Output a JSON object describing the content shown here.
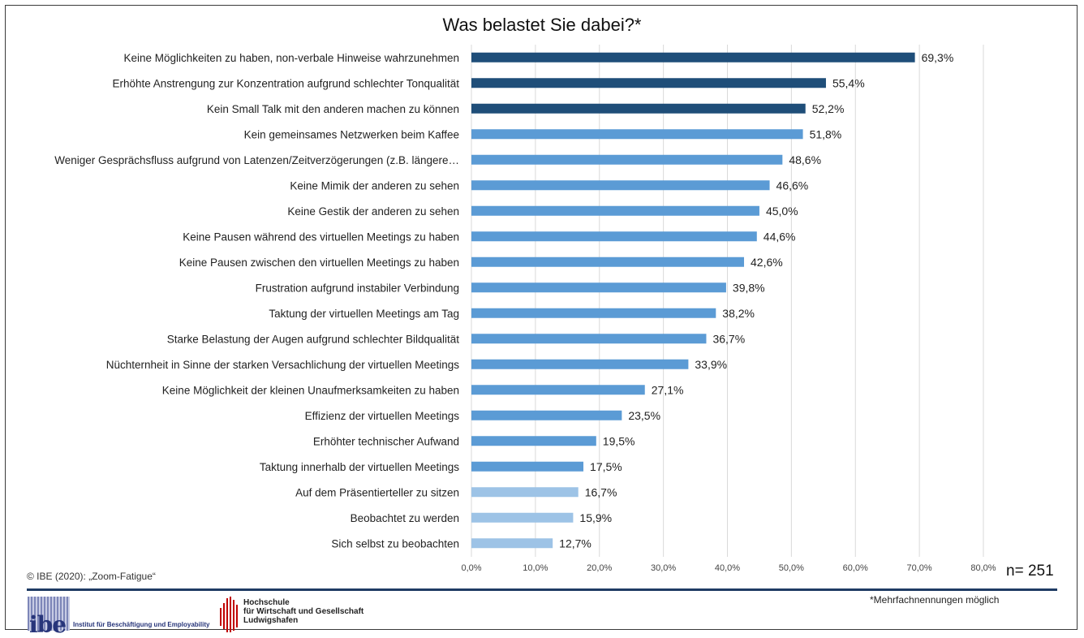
{
  "chart_data": {
    "type": "bar",
    "orientation": "horizontal",
    "title": "Was belastet Sie dabei?*",
    "categories": [
      "Keine Möglichkeiten zu haben, non-verbale Hinweise wahrzunehmen",
      "Erhöhte Anstrengung zur Konzentration aufgrund schlechter Tonqualität",
      "Kein Small Talk mit den anderen machen zu können",
      "Kein gemeinsames Netzwerken beim Kaffee",
      "Weniger Gesprächsfluss aufgrund von Latenzen/Zeitverzögerungen (z.B. längere…",
      "Keine Mimik der anderen zu sehen",
      "Keine Gestik der anderen zu sehen",
      "Keine Pausen während des virtuellen Meetings zu haben",
      "Keine Pausen zwischen den virtuellen Meetings zu haben",
      "Frustration aufgrund instabiler Verbindung",
      "Taktung der virtuellen Meetings am Tag",
      "Starke Belastung der Augen aufgrund schlechter Bildqualität",
      "Nüchternheit in Sinne der starken Versachlichung der virtuellen Meetings",
      "Keine Möglichkeit der kleinen Unaufmerksamkeiten zu haben",
      "Effizienz der virtuellen Meetings",
      "Erhöhter technischer Aufwand",
      "Taktung innerhalb der virtuellen Meetings",
      "Auf dem Präsentierteller zu sitzen",
      "Beobachtet zu werden",
      "Sich selbst zu beobachten"
    ],
    "values": [
      69.3,
      55.4,
      52.2,
      51.8,
      48.6,
      46.6,
      45.0,
      44.6,
      42.6,
      39.8,
      38.2,
      36.7,
      33.9,
      27.1,
      23.5,
      19.5,
      17.5,
      16.7,
      15.9,
      12.7
    ],
    "value_labels": [
      "69,3%",
      "55,4%",
      "52,2%",
      "51,8%",
      "48,6%",
      "46,6%",
      "45,0%",
      "44,6%",
      "42,6%",
      "39,8%",
      "38,2%",
      "36,7%",
      "33,9%",
      "27,1%",
      "23,5%",
      "19,5%",
      "17,5%",
      "16,7%",
      "15,9%",
      "12,7%"
    ],
    "bar_tiers": [
      "dark",
      "dark",
      "dark",
      "mid",
      "mid",
      "mid",
      "mid",
      "mid",
      "mid",
      "mid",
      "mid",
      "mid",
      "mid",
      "mid",
      "mid",
      "mid",
      "mid",
      "light",
      "light",
      "light"
    ],
    "colors": {
      "dark": "#1f4e79",
      "mid": "#5b9bd5",
      "light": "#9dc3e6",
      "grid": "#d9d9d9"
    },
    "x_ticks": [
      0,
      10,
      20,
      30,
      40,
      50,
      60,
      70,
      80
    ],
    "x_tick_labels": [
      "0,0%",
      "10,0%",
      "20,0%",
      "30,0%",
      "40,0%",
      "50,0%",
      "60,0%",
      "70,0%",
      "80,0%"
    ],
    "xlim": [
      0,
      80
    ],
    "grid": true
  },
  "footer": {
    "copyright": "© IBE (2020): „Zoom-Fatigue“",
    "n_label": "n= 251",
    "note": "*Mehrfachnennungen möglich"
  },
  "logos": {
    "ibe_mark": "ibe",
    "ibe_subtitle": "Institut für Beschäftigung und Employability",
    "hs_lines": [
      "Hochschule",
      "für Wirtschaft und Gesellschaft",
      "Ludwigshafen"
    ]
  }
}
